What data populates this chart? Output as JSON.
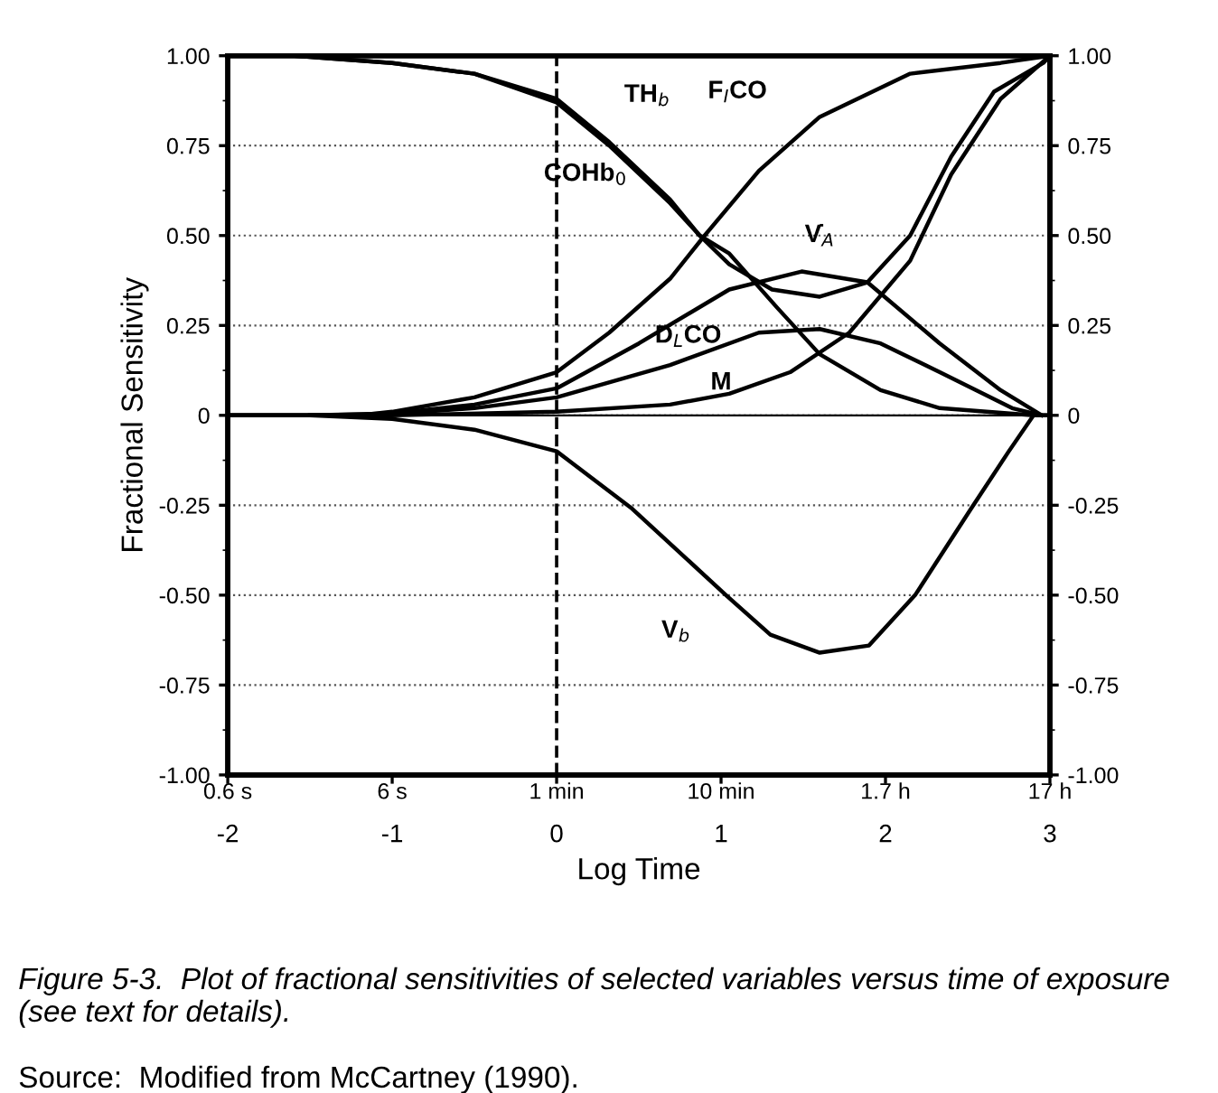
{
  "chart_data": {
    "type": "line",
    "xlabel": "Log Time",
    "ylabel": "Fractional Sensitivity",
    "xlim": [
      -2,
      3
    ],
    "xticks": [
      -2,
      -1,
      0,
      1,
      2,
      3
    ],
    "ylim": [
      -1,
      1
    ],
    "yticks": [
      {
        "value": -1,
        "label": "-1.00"
      },
      {
        "value": -0.75,
        "label": "-0.75"
      },
      {
        "value": -0.5,
        "label": "-0.50"
      },
      {
        "value": -0.25,
        "label": "-0.25"
      },
      0,
      {
        "value": 0.25,
        "label": "0.25"
      },
      {
        "value": 0.5,
        "label": "0.50"
      },
      {
        "value": 0.75,
        "label": "0.75"
      },
      {
        "value": 1,
        "label": "1.00"
      }
    ],
    "y2lim": [
      -1,
      1
    ],
    "y2ticks": [
      {
        "value": -1,
        "label": "-1.00"
      },
      {
        "value": -0.75,
        "label": "-0.75"
      },
      {
        "value": -0.5,
        "label": "-0.50"
      },
      {
        "value": -0.25,
        "label": "-0.25"
      },
      0,
      {
        "value": 0.25,
        "label": "0.25"
      },
      {
        "value": 0.5,
        "label": "0.50"
      },
      {
        "value": 0.75,
        "label": "0.75"
      },
      {
        "value": 1,
        "label": "1.00"
      }
    ],
    "grid": "y",
    "legend": false,
    "marker": "none",
    "line_style": "solid",
    "ref_lines": [
      {
        "axis": "x",
        "value": 0,
        "color": "#000000",
        "line_style": "dashed"
      },
      {
        "axis": "y",
        "value": 0,
        "color": "#000000",
        "line_style": "solid"
      }
    ],
    "series": [
      {
        "name": "TH$_{b}$",
        "color": "#000000",
        "x": [
          -1.6,
          -1,
          -0.5,
          0,
          0.32,
          0.69,
          0.87,
          1.05,
          1.31,
          1.6,
          1.89,
          2.15,
          2.4,
          2.66,
          2.96,
          3
        ],
        "values": [
          1,
          0.98,
          0.95,
          0.88,
          0.76,
          0.6,
          0.5,
          0.42,
          0.35,
          0.33,
          0.37,
          0.5,
          0.72,
          0.9,
          0.98,
          1
        ]
      },
      {
        "name": "COHb$_{0}$",
        "color": "#000000",
        "x": [
          -1.6,
          -1,
          -0.5,
          0,
          0.32,
          0.69,
          0.87,
          1.05,
          1.34,
          1.6,
          1.97,
          2.33,
          2.9,
          3
        ],
        "values": [
          1,
          0.98,
          0.95,
          0.87,
          0.75,
          0.59,
          0.5,
          0.45,
          0.3,
          0.17,
          0.07,
          0.02,
          0,
          0
        ]
      },
      {
        "name": "F$_{I}$CO",
        "color": "#000000",
        "x": [
          -1.5,
          -1.2,
          -1,
          -0.5,
          0,
          0.32,
          0.69,
          0.9,
          1.23,
          1.6,
          2.15,
          2.7,
          3
        ],
        "values": [
          0,
          0,
          0.01,
          0.05,
          0.12,
          0.23,
          0.38,
          0.5,
          0.68,
          0.83,
          0.95,
          0.98,
          1
        ]
      },
      {
        "name": "V̇$_{A}$",
        "color": "#000000",
        "x": [
          -1.5,
          -1,
          -0.5,
          0,
          0.5,
          1.05,
          1.49,
          1.89,
          2.33,
          2.7,
          2.95
        ],
        "values": [
          0,
          0.005,
          0.03,
          0.075,
          0.2,
          0.35,
          0.4,
          0.37,
          0.2,
          0.07,
          0
        ]
      },
      {
        "name": "D$_{L}$CO",
        "color": "#000000",
        "x": [
          -2,
          -1.5,
          -1,
          -0.5,
          0,
          0.69,
          1.23,
          1.6,
          1.97,
          2.33,
          2.77,
          2.95,
          3
        ],
        "values": [
          0,
          0,
          0.004,
          0.02,
          0.05,
          0.14,
          0.23,
          0.24,
          0.2,
          0.12,
          0.02,
          0,
          0
        ]
      },
      {
        "name": "M",
        "color": "#000000",
        "x": [
          -2,
          -1,
          0,
          0.69,
          1.05,
          1.42,
          1.78,
          2.15,
          2.4,
          2.7,
          3
        ],
        "values": [
          0,
          0,
          0.01,
          0.03,
          0.06,
          0.12,
          0.23,
          0.43,
          0.67,
          0.88,
          1
        ]
      },
      {
        "name": "V$_{b}$",
        "color": "#000000",
        "x": [
          -2,
          -1.5,
          -1,
          -0.5,
          0,
          0.46,
          1.03,
          1.3,
          1.6,
          1.9,
          2.18,
          2.52,
          2.75,
          2.9
        ],
        "values": [
          0,
          0,
          -0.01,
          -0.04,
          -0.1,
          -0.26,
          -0.5,
          -0.61,
          -0.66,
          -0.64,
          -0.5,
          -0.26,
          -0.1,
          0
        ]
      }
    ],
    "annotations": [
      "0.6 s",
      "6 s",
      "1 min",
      "10 min",
      "1.7 h",
      "17 h",
      "Figure 5-3.  Plot of fractional sensitivities of selected variables versus time of exposure (see text for details).",
      "Source:  Modified from McCartney (1990)."
    ]
  }
}
